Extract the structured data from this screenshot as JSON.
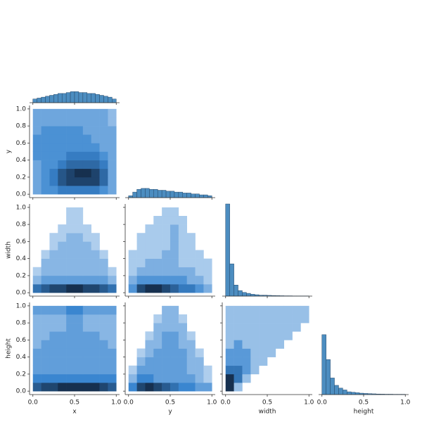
{
  "chart_data": [
    {
      "type": "histogram",
      "bins": [
        0,
        0.05,
        0.1,
        0.15,
        0.2,
        0.25,
        0.3,
        0.35,
        0.4,
        0.45,
        0.5,
        0.55,
        0.6,
        0.65,
        0.7,
        0.75,
        0.8,
        0.85,
        0.9,
        0.95,
        1.0
      ],
      "counts": [
        4,
        5,
        6,
        7,
        8,
        9,
        10,
        10,
        11,
        12,
        12,
        11,
        11,
        10,
        10,
        9,
        8,
        7,
        6,
        4
      ],
      "xlim": [
        -0.04,
        1.04
      ],
      "ylim": [
        0,
        100
      ],
      "xticks": [
        0,
        0.5,
        1
      ],
      "color": "#4c8dc0",
      "edgecolor": "#24486a"
    },
    {
      "type": "hist2d",
      "ylabel": "y",
      "xbins": [
        0,
        0.1,
        0.2,
        0.3,
        0.4,
        0.5,
        0.6,
        0.7,
        0.8,
        0.9,
        1.0
      ],
      "ybins": [
        0,
        0.1,
        0.2,
        0.3,
        0.4,
        0.5,
        0.6,
        0.7,
        0.8,
        0.9,
        1.0
      ],
      "z": [
        [
          3,
          4,
          4,
          5,
          5,
          5,
          5,
          5,
          4,
          3
        ],
        [
          3,
          4,
          5,
          7,
          8,
          8,
          8,
          8,
          6,
          3
        ],
        [
          3,
          4,
          5,
          7,
          8,
          9,
          9,
          8,
          6,
          3
        ],
        [
          3,
          4,
          4,
          5,
          6,
          6,
          6,
          6,
          5,
          3
        ],
        [
          4,
          4,
          4,
          4,
          5,
          5,
          5,
          5,
          4,
          3
        ],
        [
          4,
          4,
          4,
          4,
          4,
          4,
          4,
          4,
          3,
          3
        ],
        [
          4,
          4,
          4,
          4,
          4,
          4,
          4,
          3,
          3,
          3
        ],
        [
          3,
          4,
          4,
          4,
          4,
          4,
          3,
          3,
          3,
          3
        ],
        [
          3,
          3,
          3,
          3,
          3,
          3,
          3,
          3,
          3,
          2
        ],
        [
          3,
          3,
          3,
          3,
          3,
          3,
          3,
          3,
          3,
          2
        ]
      ],
      "xlim": [
        -0.04,
        1.04
      ],
      "ylim": [
        -0.04,
        1.04
      ],
      "xticks": [
        0,
        0.5,
        1
      ],
      "yticks": [
        {
          "value": 0,
          "label": "0.0"
        },
        {
          "value": 0.2,
          "label": "0.2"
        },
        {
          "value": 0.4,
          "label": "0.4"
        },
        {
          "value": 0.6,
          "label": "0.6"
        },
        {
          "value": 0.8,
          "label": "0.8"
        },
        {
          "value": 1,
          "label": "1.0"
        }
      ],
      "colors": [
        "#d6e6f7",
        "#3a86d0",
        "#16304f"
      ]
    },
    {
      "type": "histogram",
      "bins": [
        0,
        0.05,
        0.1,
        0.15,
        0.2,
        0.25,
        0.3,
        0.35,
        0.4,
        0.45,
        0.5,
        0.55,
        0.6,
        0.65,
        0.7,
        0.75,
        0.8,
        0.85,
        0.9,
        0.95,
        1.0
      ],
      "counts": [
        2,
        6,
        9,
        10,
        10,
        9,
        9,
        8,
        8,
        7,
        7,
        6,
        6,
        5,
        5,
        4,
        4,
        3,
        3,
        2
      ],
      "xlim": [
        -0.04,
        1.04
      ],
      "ylim": [
        0,
        100
      ],
      "xticks": [
        0,
        0.5,
        1
      ],
      "color": "#4c8dc0",
      "edgecolor": "#24486a"
    },
    {
      "type": "hist2d",
      "ylabel": "width",
      "xbins": [
        0,
        0.1,
        0.2,
        0.3,
        0.4,
        0.5,
        0.6,
        0.7,
        0.8,
        0.9,
        1.0
      ],
      "ybins": [
        0,
        0.1,
        0.2,
        0.3,
        0.4,
        0.5,
        0.6,
        0.7,
        0.8,
        0.9,
        1.0
      ],
      "z": [
        [
          5,
          6,
          7,
          7,
          8,
          8,
          7,
          7,
          6,
          5
        ],
        [
          2,
          3,
          3,
          3,
          3,
          3,
          3,
          3,
          3,
          2
        ],
        [
          1,
          2,
          2,
          2,
          2,
          2,
          2,
          2,
          2,
          1
        ],
        [
          0,
          2,
          2,
          2,
          2,
          2,
          2,
          2,
          2,
          0
        ],
        [
          0,
          1,
          2,
          2,
          2,
          2,
          2,
          2,
          1,
          0
        ],
        [
          0,
          0,
          1,
          2,
          2,
          2,
          2,
          1,
          0,
          0
        ],
        [
          0,
          0,
          1,
          1,
          2,
          2,
          1,
          1,
          0,
          0
        ],
        [
          0,
          0,
          0,
          1,
          1,
          1,
          1,
          0,
          0,
          0
        ],
        [
          0,
          0,
          0,
          0,
          1,
          1,
          0,
          0,
          0,
          0
        ],
        [
          0,
          0,
          0,
          0,
          1,
          1,
          0,
          0,
          0,
          0
        ]
      ],
      "xlim": [
        -0.04,
        1.04
      ],
      "ylim": [
        -0.04,
        1.04
      ],
      "xticks": [
        0,
        0.5,
        1
      ],
      "yticks": [
        {
          "value": 0,
          "label": "0.0"
        },
        {
          "value": 0.2,
          "label": "0.2"
        },
        {
          "value": 0.4,
          "label": "0.4"
        },
        {
          "value": 0.6,
          "label": "0.6"
        },
        {
          "value": 0.8,
          "label": "0.8"
        },
        {
          "value": 1,
          "label": "1.0"
        }
      ],
      "colors": [
        "#d6e6f7",
        "#3a86d0",
        "#16304f"
      ]
    },
    {
      "type": "hist2d",
      "xbins": [
        0,
        0.1,
        0.2,
        0.3,
        0.4,
        0.5,
        0.6,
        0.7,
        0.8,
        0.9,
        1.0
      ],
      "ybins": [
        0,
        0.1,
        0.2,
        0.3,
        0.4,
        0.5,
        0.6,
        0.7,
        0.8,
        0.9,
        1.0
      ],
      "z": [
        [
          3,
          6,
          7,
          7,
          6,
          5,
          4,
          4,
          3,
          2
        ],
        [
          2,
          3,
          3,
          3,
          3,
          3,
          3,
          2,
          2,
          1
        ],
        [
          1,
          2,
          2,
          2,
          2,
          2,
          2,
          2,
          1,
          1
        ],
        [
          1,
          1,
          2,
          2,
          2,
          2,
          1,
          1,
          1,
          1
        ],
        [
          1,
          1,
          1,
          1,
          2,
          2,
          1,
          1,
          1,
          0
        ],
        [
          0,
          1,
          1,
          1,
          1,
          2,
          1,
          1,
          0,
          0
        ],
        [
          0,
          1,
          1,
          1,
          1,
          2,
          1,
          1,
          0,
          0
        ],
        [
          0,
          0,
          1,
          1,
          1,
          2,
          1,
          0,
          0,
          0
        ],
        [
          0,
          0,
          0,
          1,
          1,
          1,
          1,
          0,
          0,
          0
        ],
        [
          0,
          0,
          0,
          0,
          1,
          1,
          0,
          0,
          0,
          0
        ]
      ],
      "xlim": [
        -0.04,
        1.04
      ],
      "ylim": [
        -0.04,
        1.04
      ],
      "xticks": [
        0,
        0.5,
        1
      ],
      "yticks": [
        0,
        0.2,
        0.4,
        0.6,
        0.8,
        1
      ],
      "colors": [
        "#d6e6f7",
        "#3a86d0",
        "#16304f"
      ]
    },
    {
      "type": "histogram",
      "bins": [
        0,
        0.05,
        0.1,
        0.15,
        0.2,
        0.25,
        0.3,
        0.35,
        0.4,
        0.45,
        0.5,
        0.55,
        0.6,
        0.65,
        0.7,
        0.75,
        0.8,
        0.85,
        0.9,
        0.95,
        1.0
      ],
      "counts": [
        100,
        35,
        12,
        6,
        4,
        3,
        2,
        1.5,
        1,
        1,
        0.8,
        0.6,
        0.5,
        0.4,
        0.3,
        0.3,
        0.2,
        0.2,
        0.2,
        0.2
      ],
      "xlim": [
        -0.04,
        1.04
      ],
      "ylim": [
        0,
        100
      ],
      "xticks": [
        0,
        0.5,
        1
      ],
      "color": "#4c8dc0",
      "edgecolor": "#24486a"
    },
    {
      "type": "hist2d",
      "xlabel": "x",
      "ylabel": "height",
      "xbins": [
        0,
        0.1,
        0.2,
        0.3,
        0.4,
        0.5,
        0.6,
        0.7,
        0.8,
        0.9,
        1.0
      ],
      "ybins": [
        0,
        0.1,
        0.2,
        0.3,
        0.4,
        0.5,
        0.6,
        0.7,
        0.8,
        0.9,
        1.0
      ],
      "z": [
        [
          6,
          7,
          7,
          8,
          8,
          8,
          8,
          8,
          7,
          6
        ],
        [
          4,
          4,
          4,
          4,
          4,
          4,
          4,
          4,
          4,
          4
        ],
        [
          3,
          3,
          3,
          3,
          3,
          3,
          3,
          3,
          3,
          3
        ],
        [
          3,
          3,
          3,
          3,
          3,
          3,
          3,
          3,
          3,
          3
        ],
        [
          3,
          3,
          3,
          3,
          3,
          3,
          3,
          3,
          3,
          3
        ],
        [
          2,
          3,
          3,
          3,
          3,
          3,
          3,
          3,
          3,
          2
        ],
        [
          2,
          2,
          3,
          3,
          3,
          3,
          3,
          3,
          2,
          2
        ],
        [
          2,
          2,
          2,
          2,
          3,
          3,
          2,
          2,
          2,
          2
        ],
        [
          2,
          2,
          2,
          2,
          3,
          3,
          2,
          2,
          2,
          2
        ],
        [
          3,
          3,
          3,
          3,
          4,
          4,
          3,
          3,
          3,
          3
        ]
      ],
      "xlim": [
        -0.04,
        1.04
      ],
      "ylim": [
        -0.04,
        1.04
      ],
      "xticks": [
        {
          "value": 0,
          "label": "0.0"
        },
        {
          "value": 0.5,
          "label": "0.5"
        },
        {
          "value": 1,
          "label": "1.0"
        }
      ],
      "yticks": [
        {
          "value": 0,
          "label": "0.0"
        },
        {
          "value": 0.2,
          "label": "0.2"
        },
        {
          "value": 0.4,
          "label": "0.4"
        },
        {
          "value": 0.6,
          "label": "0.6"
        },
        {
          "value": 0.8,
          "label": "0.8"
        },
        {
          "value": 1,
          "label": "1.0"
        }
      ],
      "colors": [
        "#d6e6f7",
        "#3a86d0",
        "#16304f"
      ]
    },
    {
      "type": "hist2d",
      "xlabel": "y",
      "xbins": [
        0,
        0.1,
        0.2,
        0.3,
        0.4,
        0.5,
        0.6,
        0.7,
        0.8,
        0.9,
        1.0
      ],
      "ybins": [
        0,
        0.1,
        0.2,
        0.3,
        0.4,
        0.5,
        0.6,
        0.7,
        0.8,
        0.9,
        1.0
      ],
      "z": [
        [
          4,
          7,
          8,
          7,
          6,
          5,
          4,
          4,
          3,
          3
        ],
        [
          2,
          4,
          4,
          3,
          3,
          3,
          3,
          3,
          2,
          1
        ],
        [
          1,
          3,
          3,
          3,
          3,
          3,
          3,
          2,
          2,
          1
        ],
        [
          0,
          2,
          3,
          3,
          3,
          3,
          3,
          2,
          2,
          0
        ],
        [
          0,
          1,
          2,
          3,
          3,
          3,
          3,
          2,
          1,
          0
        ],
        [
          0,
          0,
          2,
          2,
          3,
          3,
          2,
          2,
          0,
          0
        ],
        [
          0,
          0,
          1,
          2,
          3,
          3,
          2,
          1,
          0,
          0
        ],
        [
          0,
          0,
          0,
          2,
          2,
          2,
          2,
          0,
          0,
          0
        ],
        [
          0,
          0,
          0,
          1,
          2,
          2,
          1,
          0,
          0,
          0
        ],
        [
          0,
          0,
          0,
          0,
          2,
          2,
          0,
          0,
          0,
          0
        ]
      ],
      "xlim": [
        -0.04,
        1.04
      ],
      "ylim": [
        -0.04,
        1.04
      ],
      "xticks": [
        {
          "value": 0,
          "label": "0.0"
        },
        {
          "value": 0.5,
          "label": "0.5"
        },
        {
          "value": 1,
          "label": "1.0"
        }
      ],
      "yticks": [
        0,
        0.2,
        0.4,
        0.6,
        0.8,
        1
      ],
      "colors": [
        "#d6e6f7",
        "#3a86d0",
        "#16304f"
      ]
    },
    {
      "type": "hist2d",
      "xlabel": "width",
      "xbins": [
        0,
        0.1,
        0.2,
        0.3,
        0.4,
        0.5,
        0.6,
        0.7,
        0.8,
        0.9,
        1.0
      ],
      "ybins": [
        0,
        0.1,
        0.2,
        0.3,
        0.4,
        0.5,
        0.6,
        0.7,
        0.8,
        0.9,
        1.0
      ],
      "z": [
        [
          5,
          1,
          0,
          0,
          0,
          0,
          0,
          0,
          0,
          0
        ],
        [
          5,
          3,
          1,
          0,
          0,
          0,
          0,
          0,
          0,
          0
        ],
        [
          3,
          3,
          2,
          1,
          0,
          0,
          0,
          0,
          0,
          0
        ],
        [
          2,
          2,
          2,
          1,
          1,
          0,
          0,
          0,
          0,
          0
        ],
        [
          2,
          2,
          2,
          1,
          1,
          1,
          0,
          0,
          0,
          0
        ],
        [
          1,
          2,
          1,
          1,
          1,
          1,
          1,
          0,
          0,
          0
        ],
        [
          1,
          1,
          1,
          1,
          1,
          1,
          1,
          1,
          0,
          0
        ],
        [
          1,
          1,
          1,
          1,
          1,
          1,
          1,
          1,
          1,
          0
        ],
        [
          1,
          1,
          1,
          1,
          1,
          1,
          1,
          1,
          1,
          1
        ],
        [
          1,
          1,
          1,
          1,
          1,
          1,
          1,
          1,
          1,
          1
        ]
      ],
      "xlim": [
        -0.04,
        1.04
      ],
      "ylim": [
        -0.04,
        1.04
      ],
      "xticks": [
        {
          "value": 0,
          "label": "0.0"
        },
        {
          "value": 0.5,
          "label": "0.5"
        },
        {
          "value": 1,
          "label": "1.0"
        }
      ],
      "yticks": [
        0,
        0.2,
        0.4,
        0.6,
        0.8,
        1
      ],
      "colors": [
        "#d6e6f7",
        "#3a86d0",
        "#16304f"
      ]
    },
    {
      "type": "histogram",
      "xlabel": "height",
      "bins": [
        0,
        0.05,
        0.1,
        0.15,
        0.2,
        0.25,
        0.3,
        0.35,
        0.4,
        0.45,
        0.5,
        0.55,
        0.6,
        0.65,
        0.7,
        0.75,
        0.8,
        0.85,
        0.9,
        0.95,
        1.0
      ],
      "counts": [
        65,
        38,
        18,
        10,
        7,
        5,
        3,
        2.5,
        2,
        1.5,
        1.2,
        1,
        0.8,
        0.6,
        0.5,
        0.4,
        0.4,
        0.3,
        0.3,
        0.3
      ],
      "xlim": [
        -0.04,
        1.04
      ],
      "ylim": [
        0,
        100
      ],
      "xticks": [
        {
          "value": 0,
          "label": "0.0"
        },
        {
          "value": 0.5,
          "label": "0.5"
        },
        {
          "value": 1,
          "label": "1.0"
        }
      ],
      "color": "#4c8dc0",
      "edgecolor": "#24486a"
    }
  ]
}
